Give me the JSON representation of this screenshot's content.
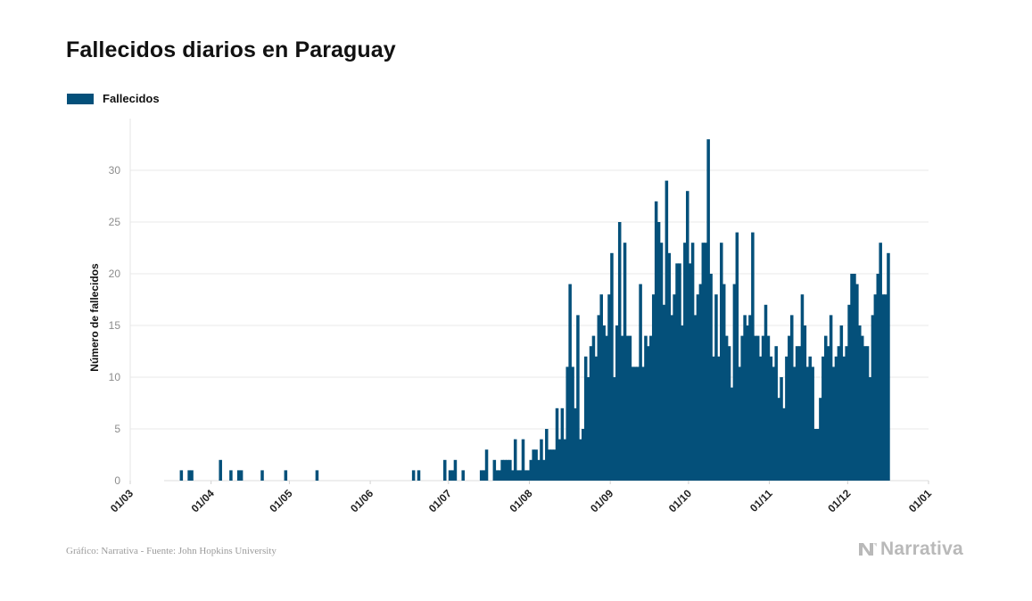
{
  "title": "Fallecidos diarios en Paraguay",
  "legend": [
    {
      "label": "Fallecidos",
      "color": "#04507a"
    }
  ],
  "footer": {
    "source": "Gráfico: Narrativa - Fuente: John Hopkins University",
    "brand": "Narrativa"
  },
  "brand_icon": "narrativa-logo-icon",
  "chart_data": {
    "type": "bar",
    "title": "Fallecidos diarios en Paraguay",
    "xlabel": "",
    "ylabel": "Número de fallecidos",
    "x_range": [
      "2020-03-01",
      "2021-01-01"
    ],
    "ylim": [
      0,
      35
    ],
    "yticks": [
      0,
      5,
      10,
      15,
      20,
      25,
      30
    ],
    "xticks": [
      "01/03",
      "01/04",
      "01/05",
      "01/06",
      "01/07",
      "01/08",
      "01/09",
      "01/10",
      "01/11",
      "01/12",
      "01/01"
    ],
    "grid": true,
    "legend_position": "top-left",
    "series": [
      {
        "name": "Fallecidos",
        "color": "#04507a",
        "points": [
          [
            "2020-03-20",
            1
          ],
          [
            "2020-03-23",
            1
          ],
          [
            "2020-03-24",
            1
          ],
          [
            "2020-04-04",
            2
          ],
          [
            "2020-04-08",
            1
          ],
          [
            "2020-04-11",
            1
          ],
          [
            "2020-04-12",
            1
          ],
          [
            "2020-04-20",
            1
          ],
          [
            "2020-04-29",
            1
          ],
          [
            "2020-05-11",
            1
          ],
          [
            "2020-06-17",
            1
          ],
          [
            "2020-06-19",
            1
          ],
          [
            "2020-06-29",
            2
          ],
          [
            "2020-07-01",
            1
          ],
          [
            "2020-07-02",
            1
          ],
          [
            "2020-07-03",
            2
          ],
          [
            "2020-07-06",
            1
          ],
          [
            "2020-07-13",
            1
          ],
          [
            "2020-07-14",
            1
          ],
          [
            "2020-07-15",
            3
          ],
          [
            "2020-07-18",
            2
          ],
          [
            "2020-07-19",
            1
          ],
          [
            "2020-07-20",
            1
          ],
          [
            "2020-07-21",
            2
          ],
          [
            "2020-07-22",
            2
          ],
          [
            "2020-07-23",
            2
          ],
          [
            "2020-07-24",
            2
          ],
          [
            "2020-07-25",
            1
          ],
          [
            "2020-07-26",
            4
          ],
          [
            "2020-07-27",
            1
          ],
          [
            "2020-07-28",
            1
          ],
          [
            "2020-07-29",
            4
          ],
          [
            "2020-07-30",
            1
          ],
          [
            "2020-07-31",
            1
          ],
          [
            "2020-08-01",
            2
          ],
          [
            "2020-08-02",
            3
          ],
          [
            "2020-08-03",
            3
          ],
          [
            "2020-08-04",
            2
          ],
          [
            "2020-08-05",
            4
          ],
          [
            "2020-08-06",
            2
          ],
          [
            "2020-08-07",
            5
          ],
          [
            "2020-08-08",
            3
          ],
          [
            "2020-08-09",
            3
          ],
          [
            "2020-08-10",
            3
          ],
          [
            "2020-08-11",
            7
          ],
          [
            "2020-08-12",
            4
          ],
          [
            "2020-08-13",
            7
          ],
          [
            "2020-08-14",
            4
          ],
          [
            "2020-08-15",
            11
          ],
          [
            "2020-08-16",
            19
          ],
          [
            "2020-08-17",
            11
          ],
          [
            "2020-08-18",
            7
          ],
          [
            "2020-08-19",
            16
          ],
          [
            "2020-08-20",
            4
          ],
          [
            "2020-08-21",
            5
          ],
          [
            "2020-08-22",
            12
          ],
          [
            "2020-08-23",
            10
          ],
          [
            "2020-08-24",
            13
          ],
          [
            "2020-08-25",
            14
          ],
          [
            "2020-08-26",
            12
          ],
          [
            "2020-08-27",
            16
          ],
          [
            "2020-08-28",
            18
          ],
          [
            "2020-08-29",
            15
          ],
          [
            "2020-08-30",
            14
          ],
          [
            "2020-08-31",
            18
          ],
          [
            "2020-09-01",
            22
          ],
          [
            "2020-09-02",
            10
          ],
          [
            "2020-09-03",
            15
          ],
          [
            "2020-09-04",
            25
          ],
          [
            "2020-09-05",
            14
          ],
          [
            "2020-09-06",
            23
          ],
          [
            "2020-09-07",
            14
          ],
          [
            "2020-09-08",
            14
          ],
          [
            "2020-09-09",
            11
          ],
          [
            "2020-09-10",
            11
          ],
          [
            "2020-09-11",
            11
          ],
          [
            "2020-09-12",
            19
          ],
          [
            "2020-09-13",
            11
          ],
          [
            "2020-09-14",
            14
          ],
          [
            "2020-09-15",
            13
          ],
          [
            "2020-09-16",
            14
          ],
          [
            "2020-09-17",
            18
          ],
          [
            "2020-09-18",
            27
          ],
          [
            "2020-09-19",
            25
          ],
          [
            "2020-09-20",
            23
          ],
          [
            "2020-09-21",
            17
          ],
          [
            "2020-09-22",
            29
          ],
          [
            "2020-09-23",
            22
          ],
          [
            "2020-09-24",
            16
          ],
          [
            "2020-09-25",
            18
          ],
          [
            "2020-09-26",
            21
          ],
          [
            "2020-09-27",
            21
          ],
          [
            "2020-09-28",
            15
          ],
          [
            "2020-09-29",
            23
          ],
          [
            "2020-09-30",
            28
          ],
          [
            "2020-10-01",
            21
          ],
          [
            "2020-10-02",
            23
          ],
          [
            "2020-10-03",
            16
          ],
          [
            "2020-10-04",
            18
          ],
          [
            "2020-10-05",
            19
          ],
          [
            "2020-10-06",
            23
          ],
          [
            "2020-10-07",
            23
          ],
          [
            "2020-10-08",
            33
          ],
          [
            "2020-10-09",
            20
          ],
          [
            "2020-10-10",
            12
          ],
          [
            "2020-10-11",
            18
          ],
          [
            "2020-10-12",
            12
          ],
          [
            "2020-10-13",
            23
          ],
          [
            "2020-10-14",
            19
          ],
          [
            "2020-10-15",
            14
          ],
          [
            "2020-10-16",
            13
          ],
          [
            "2020-10-17",
            9
          ],
          [
            "2020-10-18",
            19
          ],
          [
            "2020-10-19",
            24
          ],
          [
            "2020-10-20",
            11
          ],
          [
            "2020-10-21",
            14
          ],
          [
            "2020-10-22",
            16
          ],
          [
            "2020-10-23",
            15
          ],
          [
            "2020-10-24",
            16
          ],
          [
            "2020-10-25",
            24
          ],
          [
            "2020-10-26",
            14
          ],
          [
            "2020-10-27",
            14
          ],
          [
            "2020-10-28",
            12
          ],
          [
            "2020-10-29",
            14
          ],
          [
            "2020-10-30",
            17
          ],
          [
            "2020-10-31",
            14
          ],
          [
            "2020-11-01",
            12
          ],
          [
            "2020-11-02",
            11
          ],
          [
            "2020-11-03",
            13
          ],
          [
            "2020-11-04",
            8
          ],
          [
            "2020-11-05",
            10
          ],
          [
            "2020-11-06",
            7
          ],
          [
            "2020-11-07",
            12
          ],
          [
            "2020-11-08",
            14
          ],
          [
            "2020-11-09",
            16
          ],
          [
            "2020-11-10",
            11
          ],
          [
            "2020-11-11",
            13
          ],
          [
            "2020-11-12",
            13
          ],
          [
            "2020-11-13",
            18
          ],
          [
            "2020-11-14",
            15
          ],
          [
            "2020-11-15",
            11
          ],
          [
            "2020-11-16",
            12
          ],
          [
            "2020-11-17",
            11
          ],
          [
            "2020-11-18",
            5
          ],
          [
            "2020-11-19",
            5
          ],
          [
            "2020-11-20",
            8
          ],
          [
            "2020-11-21",
            12
          ],
          [
            "2020-11-22",
            14
          ],
          [
            "2020-11-23",
            13
          ],
          [
            "2020-11-24",
            16
          ],
          [
            "2020-11-25",
            11
          ],
          [
            "2020-11-26",
            12
          ],
          [
            "2020-11-27",
            13
          ],
          [
            "2020-11-28",
            15
          ],
          [
            "2020-11-29",
            12
          ],
          [
            "2020-11-30",
            13
          ],
          [
            "2020-12-01",
            17
          ],
          [
            "2020-12-02",
            20
          ],
          [
            "2020-12-03",
            20
          ],
          [
            "2020-12-04",
            19
          ],
          [
            "2020-12-05",
            15
          ],
          [
            "2020-12-06",
            14
          ],
          [
            "2020-12-07",
            13
          ],
          [
            "2020-12-08",
            13
          ],
          [
            "2020-12-09",
            10
          ],
          [
            "2020-12-10",
            16
          ],
          [
            "2020-12-11",
            18
          ],
          [
            "2020-12-12",
            20
          ],
          [
            "2020-12-13",
            23
          ],
          [
            "2020-12-14",
            18
          ],
          [
            "2020-12-15",
            18
          ],
          [
            "2020-12-16",
            22
          ]
        ]
      }
    ]
  }
}
